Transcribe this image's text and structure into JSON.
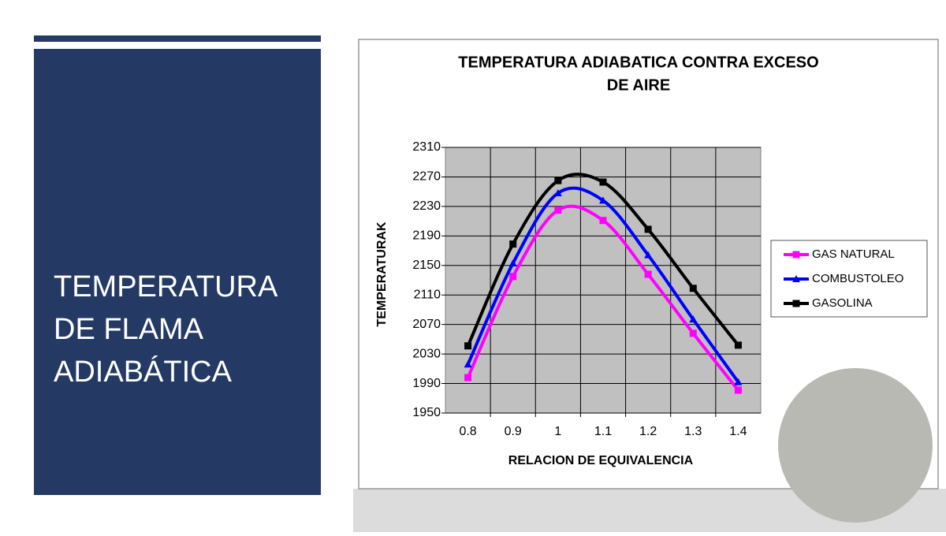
{
  "slide": {
    "title": [
      "TEMPERATURA",
      "DE FLAMA",
      "ADIABÁTICA"
    ]
  },
  "chart_data": {
    "type": "line",
    "title": [
      "TEMPERATURA ADIABATICA CONTRA EXCESO",
      "DE AIRE"
    ],
    "x_label": "RELACION DE EQUIVALENCIA",
    "y_label": "TEMPERATURAK",
    "categories": [
      "0.8",
      "0.9",
      "1",
      "1.1",
      "1.2",
      "1.3",
      "1.4"
    ],
    "series": [
      {
        "name": "GAS NATURAL",
        "color": "#ff00ff",
        "marker": "square",
        "values": [
          1998,
          2135,
          2225,
          2211,
          2138,
          2058,
          1981
        ]
      },
      {
        "name": "COMBUSTOLEO",
        "color": "#0000ff",
        "marker": "triangle",
        "values": [
          2016,
          2153,
          2248,
          2238,
          2164,
          2077,
          1992
        ]
      },
      {
        "name": "GASOLINA",
        "color": "#000000",
        "marker": "square",
        "values": [
          2041,
          2179,
          2265,
          2263,
          2199,
          2119,
          2042
        ]
      }
    ],
    "ylim": [
      1950,
      2310
    ],
    "yticks": [
      1950,
      1990,
      2030,
      2070,
      2110,
      2150,
      2190,
      2230,
      2270,
      2310
    ],
    "grid": true,
    "smooth": true,
    "legend": "right"
  }
}
